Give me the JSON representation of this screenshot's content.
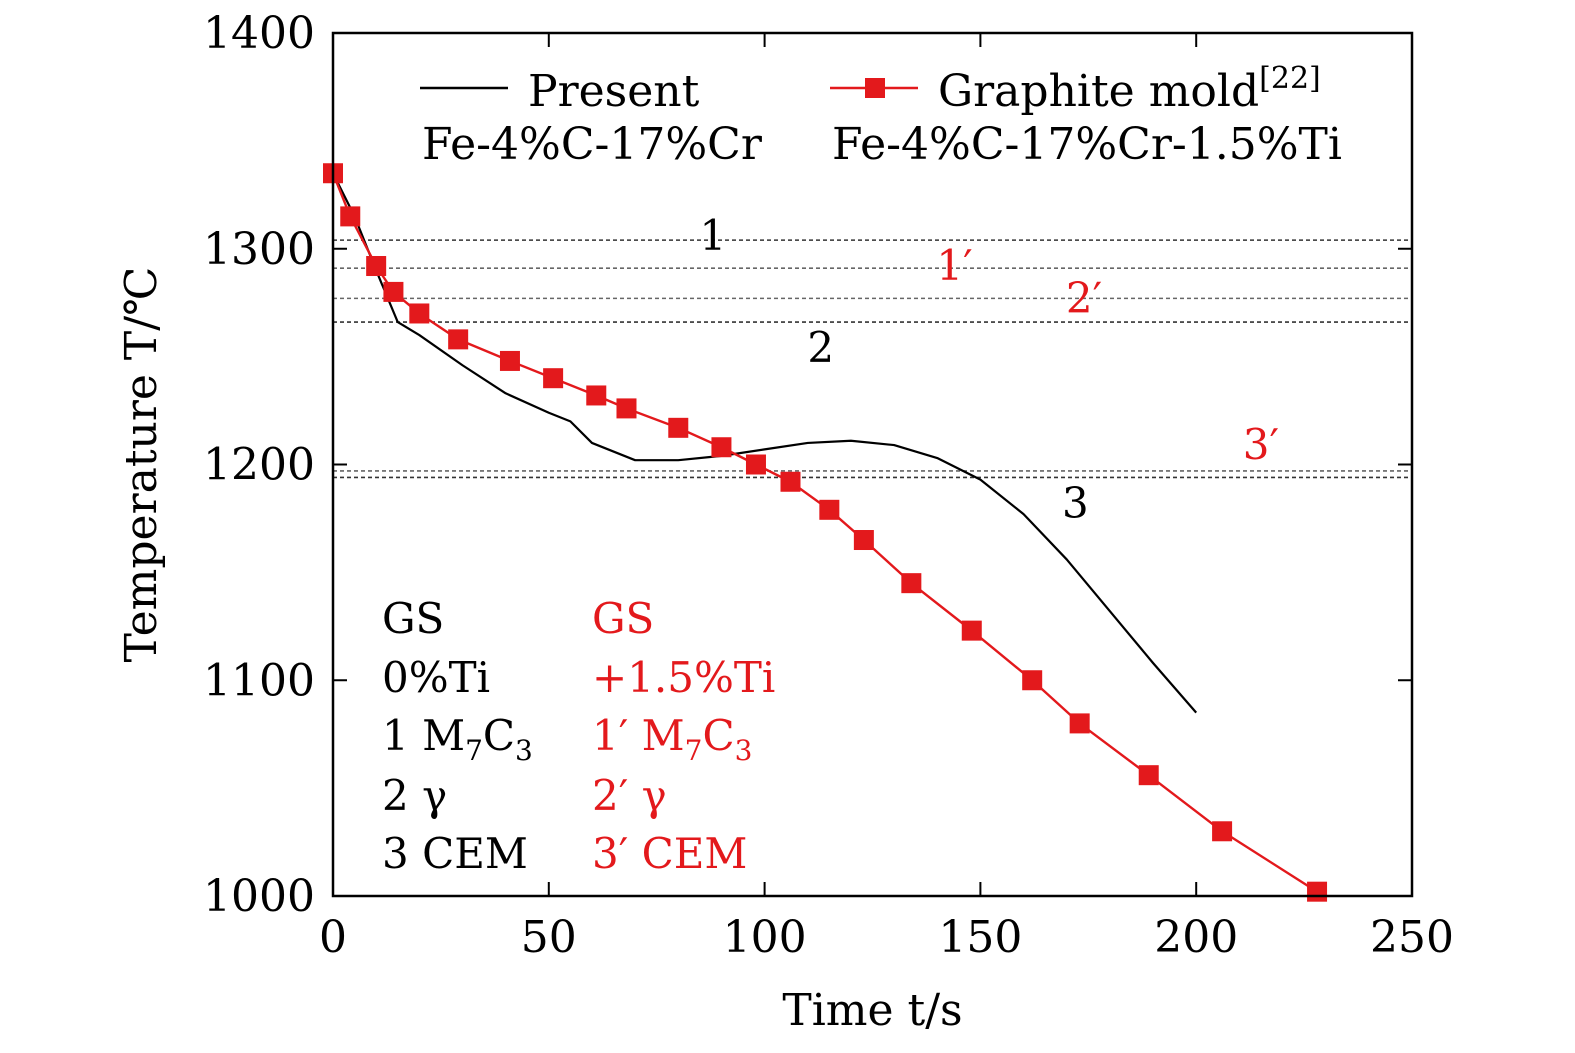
{
  "chart_data": {
    "type": "line",
    "xlabel": "Time t/s",
    "ylabel": "Temperature T/℃",
    "xlim": [
      0,
      250
    ],
    "ylim": [
      1000,
      1400
    ],
    "xticks": [
      0,
      50,
      100,
      150,
      200,
      250
    ],
    "yticks": [
      1000,
      1100,
      1200,
      1300,
      1400
    ],
    "grid": false,
    "legend_position": "top",
    "colors": {
      "present": "#000000",
      "graphite": "#e3191c"
    },
    "series": [
      {
        "name": "Present",
        "subtitle": "Fe-4%C-17%Cr",
        "style": "line",
        "x": [
          0,
          5,
          10,
          15,
          20,
          30,
          40,
          50,
          55,
          60,
          70,
          80,
          90,
          100,
          110,
          120,
          130,
          140,
          150,
          160,
          170,
          180,
          190,
          200
        ],
        "y": [
          1335,
          1315,
          1290,
          1266,
          1260,
          1246,
          1233,
          1224,
          1220,
          1210,
          1202,
          1202,
          1204,
          1207,
          1210,
          1211,
          1209,
          1203,
          1193,
          1177,
          1156,
          1132,
          1108,
          1085
        ]
      },
      {
        "name": "Graphite mold",
        "name_sup": "[22]",
        "subtitle": "Fe-4%C-17%Cr-1.5%Ti",
        "style": "line+square",
        "x": [
          0,
          4,
          10,
          14,
          20,
          29,
          41,
          51,
          61,
          68,
          80,
          90,
          98,
          106,
          115,
          123,
          134,
          148,
          162,
          173,
          189,
          206,
          228
        ],
        "y": [
          1335,
          1315,
          1292,
          1280,
          1270,
          1258,
          1248,
          1240,
          1232,
          1226,
          1217,
          1208,
          1200,
          1192,
          1179,
          1165,
          1145,
          1123,
          1100,
          1080,
          1056,
          1030,
          1002
        ]
      }
    ],
    "reference_lines": [
      {
        "label": "1",
        "y": 1304,
        "color": "#000000",
        "label_x": 88
      },
      {
        "label": "1′",
        "y": 1291,
        "color": "#e3191c",
        "label_x": 144
      },
      {
        "label": "2′",
        "y": 1277,
        "color": "#e3191c",
        "label_x": 174
      },
      {
        "label": "2",
        "y": 1266,
        "color": "#000000",
        "label_x": 113
      },
      {
        "label": "3′",
        "y": 1197,
        "color": "#e3191c",
        "label_x": 215
      },
      {
        "label": "3",
        "y": 1194,
        "color": "#000000",
        "label_x": 172
      }
    ],
    "annotations": {
      "left": [
        "GS",
        "0%Ti",
        "1 M7C3",
        "2 γ",
        "3 CEM"
      ],
      "right": [
        "GS",
        "+1.5%Ti",
        "1′ M7C3",
        "2′ γ",
        "3′ CEM"
      ]
    }
  }
}
